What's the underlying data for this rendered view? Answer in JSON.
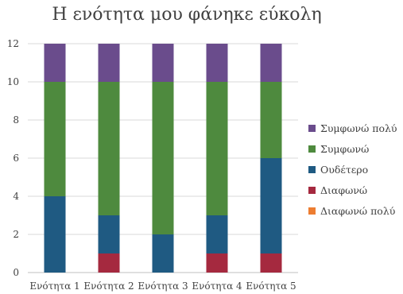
{
  "chart_data": {
    "type": "bar",
    "stacked": true,
    "title": "Η ενότητα μου φάνηκε εύκολη",
    "categories": [
      "Ενότητα 1",
      "Ενότητα 2",
      "Ενότητα 3",
      "Ενότητα 4",
      "Ενότητα 5"
    ],
    "ylim": [
      0,
      12
    ],
    "yticks": [
      0,
      2,
      4,
      6,
      8,
      10,
      12
    ],
    "grid": true,
    "legend": "right",
    "series": [
      {
        "name": "Διαφωνώ πολύ",
        "color": "#ED7D31",
        "values": [
          0,
          0,
          0,
          0,
          0
        ]
      },
      {
        "name": "Διαφωνώ",
        "color": "#A5293F",
        "values": [
          0,
          1,
          0,
          1,
          1
        ]
      },
      {
        "name": "Ουδέτερο",
        "color": "#1F5A82",
        "values": [
          4,
          2,
          2,
          2,
          5
        ]
      },
      {
        "name": "Συμφωνώ",
        "color": "#4E8A3E",
        "values": [
          6,
          7,
          8,
          7,
          4
        ]
      },
      {
        "name": "Συμφωνώ πολύ",
        "color": "#6A4C8C",
        "values": [
          2,
          2,
          2,
          2,
          2
        ]
      }
    ],
    "legend_order": [
      4,
      3,
      2,
      1,
      0
    ]
  }
}
